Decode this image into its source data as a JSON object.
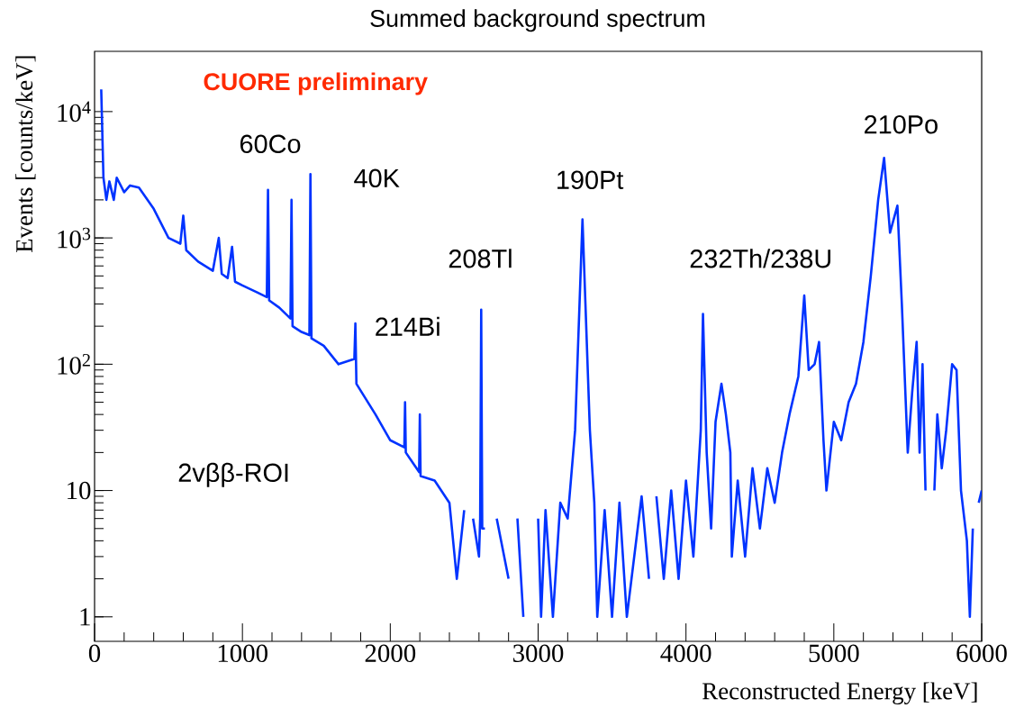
{
  "chart_data": {
    "type": "line",
    "title": "Summed background spectrum",
    "xlabel": "Reconstructed Energy [keV]",
    "ylabel": "Events [counts/keV]",
    "log": "y",
    "color": "#0033ff",
    "xlim": [
      0,
      6000
    ],
    "ylim": [
      0.64,
      30000
    ],
    "xticks": [
      0,
      1000,
      2000,
      3000,
      4000,
      5000,
      6000
    ],
    "yticks": [
      1,
      10,
      {
        "value": 100,
        "label": "10$^{2}$"
      },
      {
        "value": 1000,
        "label": "10$^{3}$"
      },
      {
        "value": 10000,
        "label": "10$^{4}$"
      }
    ],
    "x": [
      45,
      60,
      80,
      100,
      130,
      150,
      200,
      240,
      300,
      400,
      500,
      580,
      600,
      620,
      700,
      800,
      840,
      860,
      900,
      930,
      950,
      1000,
      1100,
      1165,
      1173,
      1181,
      1250,
      1325,
      1332,
      1339,
      1400,
      1453,
      1460,
      1467,
      1550,
      1650,
      1757,
      1764,
      1771,
      1900,
      2000,
      2095,
      2100,
      2105,
      2195,
      2200,
      2205,
      2300,
      2400,
      2450,
      2500,
      2530,
      2560,
      2600,
      2608,
      2615,
      2622,
      2640,
      2680,
      2720,
      2800,
      2820,
      2860,
      2900,
      2960,
      3000,
      3020,
      3050,
      3100,
      3150,
      3200,
      3250,
      3280,
      3300,
      3320,
      3350,
      3380,
      3400,
      3450,
      3500,
      3550,
      3600,
      3700,
      3750,
      3780,
      3800,
      3850,
      3900,
      3950,
      4000,
      4050,
      4100,
      4115,
      4140,
      4170,
      4200,
      4240,
      4270,
      4300,
      4310,
      4350,
      4400,
      4450,
      4500,
      4550,
      4600,
      4650,
      4700,
      4760,
      4800,
      4830,
      4870,
      4900,
      4930,
      4950,
      5000,
      5050,
      5100,
      5150,
      5200,
      5250,
      5300,
      5340,
      5380,
      5430,
      5460,
      5500,
      5530,
      5560,
      5580,
      5600,
      5620,
      5650,
      5680,
      5700,
      5730,
      5760,
      5800,
      5830,
      5860,
      5900,
      5920,
      5940,
      5960,
      5980,
      6000
    ],
    "values": [
      15000,
      3000,
      2000,
      2800,
      2000,
      3000,
      2300,
      2600,
      2500,
      1700,
      1000,
      900,
      1500,
      800,
      650,
      550,
      1000,
      520,
      480,
      850,
      450,
      420,
      370,
      340,
      2400,
      320,
      280,
      230,
      2000,
      200,
      180,
      170,
      3200,
      160,
      140,
      100,
      110,
      210,
      70,
      40,
      25,
      22,
      50,
      20,
      14,
      40,
      13,
      12,
      8,
      2,
      7,
      null,
      6,
      3,
      6,
      270,
      5,
      5,
      null,
      6,
      2,
      null,
      6,
      1,
      null,
      6,
      1,
      7,
      1,
      8,
      6,
      30,
      300,
      1400,
      300,
      30,
      8,
      1,
      7,
      1,
      8,
      1,
      9,
      2,
      null,
      9,
      2,
      10,
      2,
      12,
      3,
      30,
      250,
      20,
      5,
      35,
      70,
      40,
      20,
      3,
      12,
      3,
      15,
      5,
      15,
      8,
      20,
      40,
      80,
      350,
      90,
      100,
      150,
      25,
      10,
      35,
      25,
      50,
      70,
      150,
      500,
      2000,
      4300,
      1100,
      1800,
      300,
      20,
      60,
      150,
      20,
      100,
      10,
      null,
      10,
      40,
      15,
      30,
      100,
      90,
      10,
      4,
      1,
      5,
      null,
      8,
      10
    ],
    "annotations": [
      "CUORE preliminary",
      "60Co",
      "40K",
      "214Bi",
      "208Tl",
      "190Pt",
      "232Th/238U",
      "210Po",
      "2vββ-ROI"
    ]
  }
}
